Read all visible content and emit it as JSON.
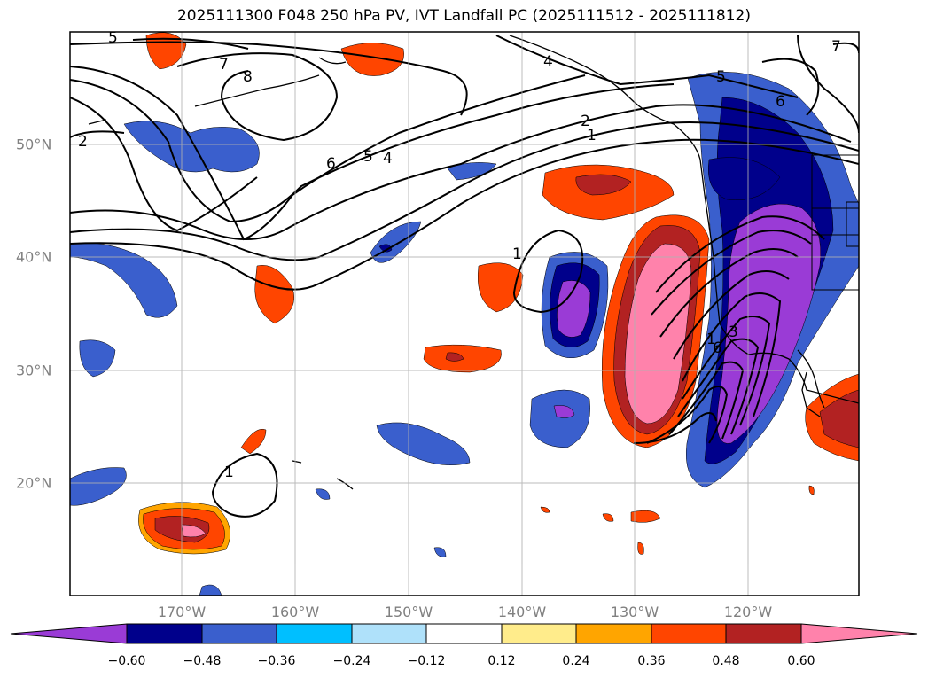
{
  "title": "2025111300 F048 250 hPa PV, IVT Landfall PC (2025111512 - 2025111812)",
  "map": {
    "lon_range": [
      -180,
      -110
    ],
    "lat_range": [
      10,
      60
    ],
    "gridlines": true,
    "lon_labels": [
      "170°W",
      "160°W",
      "150°W",
      "140°W",
      "130°W",
      "120°W"
    ],
    "lat_labels": [
      "50°N",
      "40°N",
      "30°N",
      "20°N"
    ],
    "contour_labels": [
      "5",
      "7",
      "8",
      "2",
      "6",
      "5",
      "4",
      "4",
      "2",
      "1",
      "5",
      "6",
      "7",
      "1",
      "1",
      "6",
      "1",
      "3"
    ]
  },
  "colorbar": {
    "extend": "both",
    "colors": [
      "#9a3bd6",
      "#00008b",
      "#3a5fcd",
      "#00bfff",
      "#afe1fa",
      "#ffffff",
      "#ffec8b",
      "#ffa500",
      "#ff4500",
      "#b22222",
      "#ff82ab"
    ],
    "tick_labels": [
      "−0.60",
      "−0.48",
      "−0.36",
      "−0.24",
      "−0.12",
      "0.12",
      "0.24",
      "0.36",
      "0.48",
      "0.60"
    ]
  }
}
